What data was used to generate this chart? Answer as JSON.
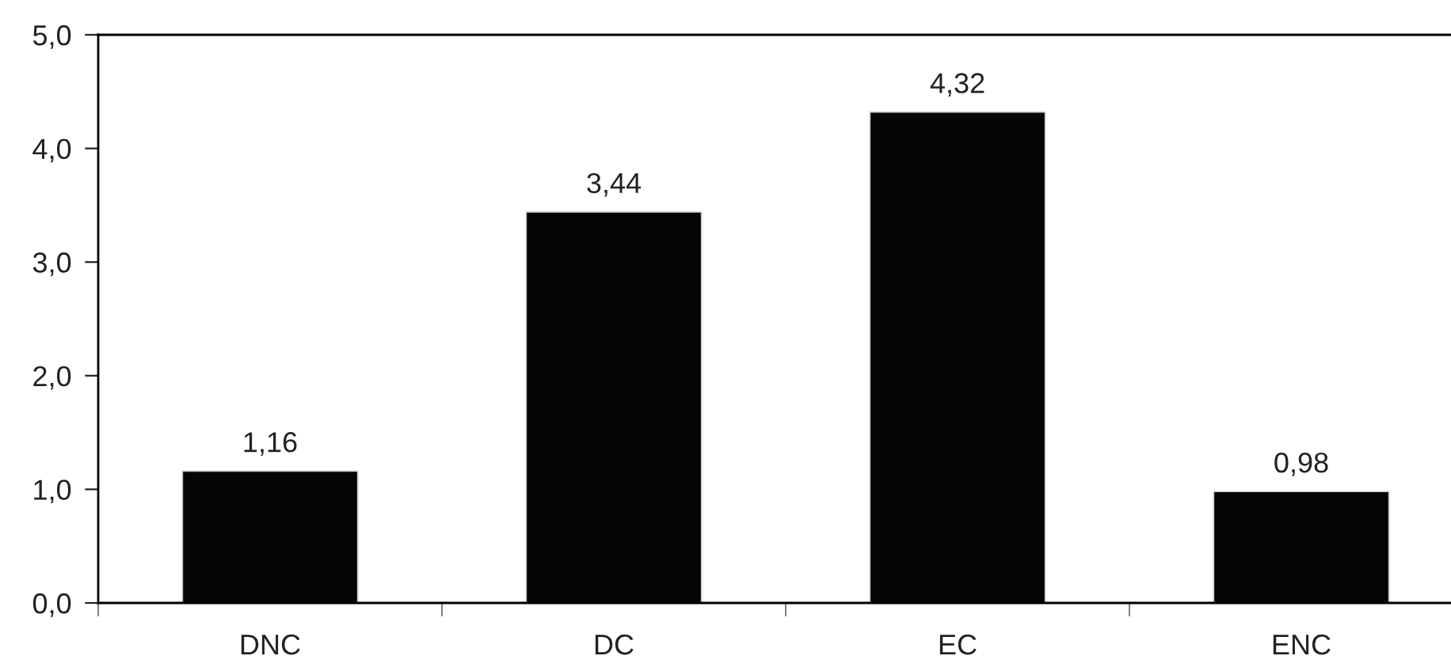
{
  "chart_data": {
    "type": "bar",
    "categories": [
      "DNC",
      "DC",
      "EC",
      "ENC"
    ],
    "values": [
      1.16,
      3.44,
      4.32,
      0.98
    ],
    "value_labels": [
      "1,16",
      "3,44",
      "4,32",
      "0,98"
    ],
    "color": "#050505",
    "ylim": [
      0,
      5
    ],
    "yticks": [
      {
        "value": 0,
        "label": "0,0"
      },
      {
        "value": 1,
        "label": "1,0"
      },
      {
        "value": 2,
        "label": "2,0"
      },
      {
        "value": 3,
        "label": "3,0"
      },
      {
        "value": 4,
        "label": "4,0"
      },
      {
        "value": 5,
        "label": "5,0"
      }
    ],
    "grid": false
  }
}
